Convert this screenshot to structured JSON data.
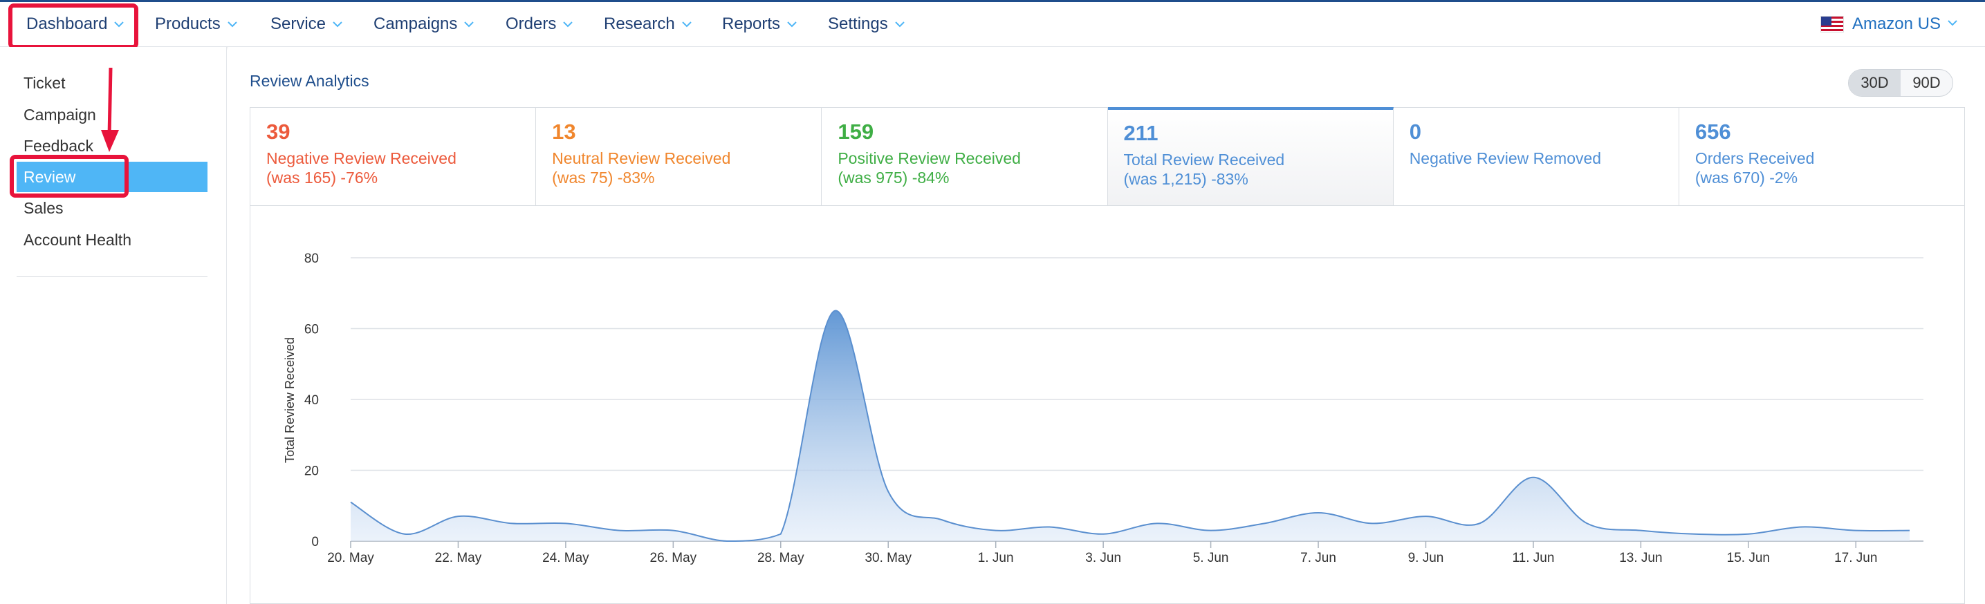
{
  "nav": {
    "items": [
      {
        "label": "Dashboard",
        "name": "nav-dashboard"
      },
      {
        "label": "Products",
        "name": "nav-products"
      },
      {
        "label": "Service",
        "name": "nav-service"
      },
      {
        "label": "Campaigns",
        "name": "nav-campaigns"
      },
      {
        "label": "Orders",
        "name": "nav-orders"
      },
      {
        "label": "Research",
        "name": "nav-research"
      },
      {
        "label": "Reports",
        "name": "nav-reports"
      },
      {
        "label": "Settings",
        "name": "nav-settings"
      }
    ],
    "region": {
      "label": "Amazon US",
      "flag_icon": "us-flag-icon"
    }
  },
  "sidebar": {
    "items": [
      {
        "label": "Ticket"
      },
      {
        "label": "Campaign"
      },
      {
        "label": "Feedback"
      },
      {
        "label": "Review",
        "active": true
      },
      {
        "label": "Sales"
      },
      {
        "label": "Account Health"
      }
    ]
  },
  "main": {
    "title": "Review Analytics",
    "range": {
      "options": [
        "30D",
        "90D"
      ],
      "selected": "30D"
    },
    "cards": [
      {
        "value": "39",
        "label": "Negative Review Received",
        "change": "(was 165) -76%",
        "color": "#ec5a3c"
      },
      {
        "value": "13",
        "label": "Neutral Review Received",
        "change": "(was 75) -83%",
        "color": "#f0862d"
      },
      {
        "value": "159",
        "label": "Positive Review Received",
        "change": "(was 975) -84%",
        "color": "#3fae45"
      },
      {
        "value": "211",
        "label": "Total Review Received",
        "change": "(was 1,215) -83%",
        "color": "#4f8fd6",
        "selected": true
      },
      {
        "value": "0",
        "label": "Negative Review Removed",
        "change": "",
        "color": "#4f8fd6"
      },
      {
        "value": "656",
        "label": "Orders Received",
        "change": "(was 670) -2%",
        "color": "#4f8fd6"
      }
    ]
  },
  "colors": {
    "accent": "#4fb6f6",
    "nav_text": "#1f3f73",
    "annotation": "#e8133b",
    "series": "#6a9fd8"
  },
  "chart_data": {
    "type": "area",
    "title": "",
    "xlabel": "",
    "ylabel": "Total Review Received",
    "ylim": [
      0,
      80
    ],
    "yticks": [
      0,
      20,
      40,
      60,
      80
    ],
    "x": [
      "20. May",
      "21. May",
      "22. May",
      "23. May",
      "24. May",
      "25. May",
      "26. May",
      "27. May",
      "28. May",
      "29. May",
      "30. May",
      "31. May",
      "1. Jun",
      "2. Jun",
      "3. Jun",
      "4. Jun",
      "5. Jun",
      "6. Jun",
      "7. Jun",
      "8. Jun",
      "9. Jun",
      "10. Jun",
      "11. Jun",
      "12. Jun",
      "13. Jun",
      "14. Jun",
      "15. Jun",
      "16. Jun",
      "17. Jun",
      "18. Jun"
    ],
    "xtick_labels": [
      "20. May",
      "22. May",
      "24. May",
      "26. May",
      "28. May",
      "30. May",
      "1. Jun",
      "3. Jun",
      "5. Jun",
      "7. Jun",
      "9. Jun",
      "11. Jun",
      "13. Jun",
      "15. Jun",
      "17. Jun"
    ],
    "series": [
      {
        "values": [
          11,
          2,
          7,
          5,
          5,
          3,
          3,
          0,
          2,
          65,
          14,
          6,
          3,
          4,
          2,
          5,
          3,
          5,
          8,
          5,
          7,
          5,
          18,
          5,
          3,
          2,
          2,
          4,
          3,
          3
        ]
      }
    ],
    "grid": true,
    "legend": "none"
  }
}
